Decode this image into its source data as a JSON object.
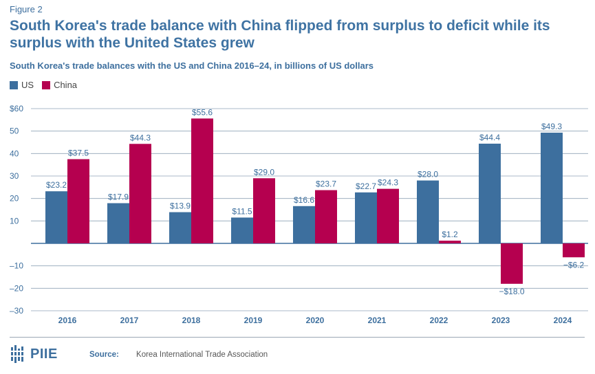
{
  "figure_label": "Figure 2",
  "title": "South Korea's trade balance with China flipped from surplus to deficit while its surplus with the United States grew",
  "subtitle": "South Korea's trade balances with the US and China 2016–24, in billions of US dollars",
  "legend": [
    {
      "name": "US",
      "color": "#3d6f9e"
    },
    {
      "name": "China",
      "color": "#b5004f"
    }
  ],
  "chart_data": {
    "type": "bar",
    "categories": [
      "2016",
      "2017",
      "2018",
      "2019",
      "2020",
      "2021",
      "2022",
      "2023",
      "2024"
    ],
    "series": [
      {
        "name": "US",
        "color": "#3d6f9e",
        "values": [
          23.2,
          17.9,
          13.9,
          11.5,
          16.6,
          22.7,
          28.0,
          44.4,
          49.3
        ],
        "labels": [
          "$23.2",
          "$17.9",
          "$13.9",
          "$11.5",
          "$16.6",
          "$22.7",
          "$28.0",
          "$44.4",
          "$49.3"
        ]
      },
      {
        "name": "China",
        "color": "#b5004f",
        "values": [
          37.5,
          44.3,
          55.6,
          29.0,
          23.7,
          24.3,
          1.2,
          -18.0,
          -6.2
        ],
        "labels": [
          "$37.5",
          "$44.3",
          "$55.6",
          "$29.0",
          "$23.7",
          "$24.3",
          "$1.2",
          "−$18.0",
          "−$6.2"
        ]
      }
    ],
    "ylim": [
      -30,
      60
    ],
    "yticks": [
      60,
      50,
      40,
      30,
      20,
      10,
      -10,
      -20,
      -30
    ],
    "ytick_labels": [
      "$60",
      "50",
      "40",
      "30",
      "20",
      "10",
      "–10",
      "–20",
      "–30"
    ],
    "grid": true,
    "legend_position": "top-left"
  },
  "footer": {
    "logo_text": "PIIE",
    "source_label": "Source:",
    "source_text": "Korea International Trade Association"
  }
}
